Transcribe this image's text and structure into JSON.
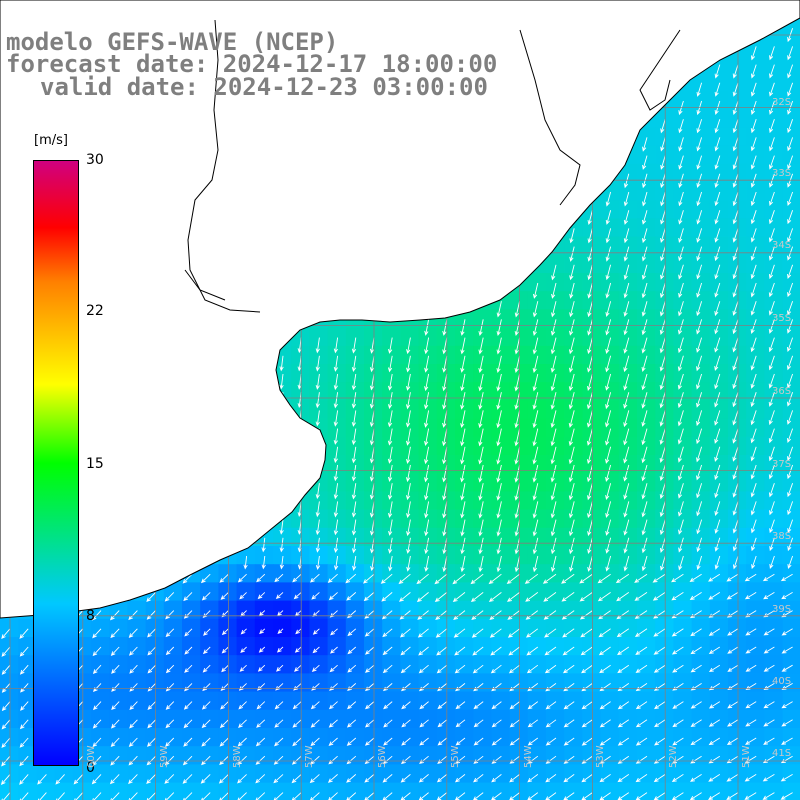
{
  "title": {
    "line1": "modelo GEFS-WAVE (NCEP)",
    "line2": "forecast date: 2024-12-17 18:00:00",
    "line3": "valid date: 2024-12-23 03:00:00"
  },
  "colorbar": {
    "units": "[m/s]",
    "ticks": [
      "30",
      "22",
      "15",
      "8",
      "0"
    ],
    "colors": [
      "#0000ff",
      "#00c8ff",
      "#00ff00",
      "#ffff00",
      "#ff8000",
      "#ff0000",
      "#d00080"
    ]
  },
  "lat_labels": [
    "32S",
    "33S",
    "34S",
    "35S",
    "36S",
    "37S",
    "38S",
    "39S",
    "40S",
    "41S"
  ],
  "lon_labels": [
    "60W",
    "59W",
    "58W",
    "57W",
    "56W",
    "55W",
    "54W",
    "53W",
    "52W",
    "51W"
  ],
  "colors": {
    "land": "#ffffff",
    "coast": "#000000",
    "grid": "#808080",
    "arrow": "#ffffff"
  }
}
